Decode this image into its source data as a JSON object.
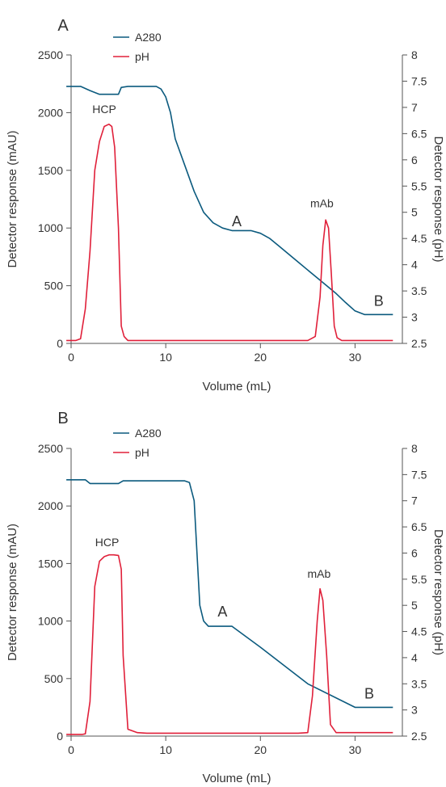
{
  "colors": {
    "a280": "#0b5a7e",
    "ph": "#e0203a"
  },
  "chart_data": [
    {
      "type": "line",
      "panel_label": "A",
      "xlabel": "Volume (mL)",
      "ylabel_left": "Detector response (mAU)",
      "ylabel_right": "Detector response (pH)",
      "xlim": [
        0,
        35
      ],
      "ylim_left": [
        0,
        2500
      ],
      "ylim_right": [
        2.5,
        8
      ],
      "x_ticks": [
        0,
        10,
        20,
        30
      ],
      "x_tick_labels": [
        "0",
        "10",
        "20",
        "30"
      ],
      "y_left_ticks": [
        0,
        500,
        1000,
        1500,
        2000,
        2500
      ],
      "y_left_tick_labels": [
        "0",
        "500",
        "1000",
        "1500",
        "2000",
        "2500"
      ],
      "y_right_ticks": [
        2.5,
        3,
        3.5,
        4,
        4.5,
        5,
        5.5,
        6,
        6.5,
        7,
        7.5,
        8
      ],
      "y_right_tick_labels": [
        "2.5",
        "3",
        "3.5",
        "4",
        "4.5",
        "5",
        "5.5",
        "6",
        "6.5",
        "7",
        "7.5",
        "8"
      ],
      "legend": [
        "A280",
        "pH"
      ],
      "series": [
        {
          "name": "A280",
          "axis": "right",
          "x": [
            -0.5,
            1,
            2,
            3,
            4,
            5,
            5.3,
            6,
            8,
            9,
            9.5,
            10,
            10.5,
            11,
            12,
            13,
            14,
            15,
            16,
            17,
            18,
            19,
            20,
            21,
            22,
            24,
            26,
            28,
            29,
            30,
            31,
            34
          ],
          "y": [
            7.4,
            7.4,
            7.32,
            7.25,
            7.25,
            7.25,
            7.38,
            7.4,
            7.4,
            7.4,
            7.35,
            7.2,
            6.9,
            6.4,
            5.9,
            5.4,
            5,
            4.8,
            4.7,
            4.65,
            4.65,
            4.65,
            4.6,
            4.5,
            4.35,
            4.05,
            3.75,
            3.45,
            3.28,
            3.12,
            3.05,
            3.05
          ]
        },
        {
          "name": "pH",
          "axis": "left",
          "x": [
            -0.5,
            0.5,
            1,
            1.5,
            2,
            2.5,
            3,
            3.5,
            4,
            4.3,
            4.6,
            5,
            5.3,
            5.6,
            6,
            7,
            10,
            20,
            25,
            25.8,
            26.3,
            26.6,
            26.9,
            27.2,
            27.5,
            27.8,
            28.1,
            28.6,
            29.5,
            34
          ],
          "y": [
            25,
            25,
            40,
            300,
            800,
            1500,
            1750,
            1880,
            1900,
            1880,
            1700,
            1000,
            150,
            60,
            25,
            25,
            25,
            25,
            25,
            60,
            400,
            850,
            1070,
            1000,
            600,
            150,
            50,
            25,
            25,
            25
          ]
        }
      ],
      "annotations": [
        {
          "text": "HCP",
          "x": 3.5,
          "y": 1995
        },
        {
          "text": "A",
          "x": 17.5,
          "y": 1015
        },
        {
          "text": "mAb",
          "x": 26.5,
          "y": 1180
        },
        {
          "text": "B",
          "x": 32.5,
          "y": 325
        }
      ]
    },
    {
      "type": "line",
      "panel_label": "B",
      "xlabel": "Volume (mL)",
      "ylabel_left": "Detector response (mAU)",
      "ylabel_right": "Detector response (pH)",
      "xlim": [
        0,
        35
      ],
      "ylim_left": [
        0,
        2500
      ],
      "ylim_right": [
        2.5,
        8
      ],
      "x_ticks": [
        0,
        10,
        20,
        30
      ],
      "x_tick_labels": [
        "0",
        "10",
        "20",
        "30"
      ],
      "y_left_ticks": [
        0,
        500,
        1000,
        1500,
        2000,
        2500
      ],
      "y_left_tick_labels": [
        "0",
        "500",
        "1000",
        "1500",
        "2000",
        "2500"
      ],
      "y_right_ticks": [
        2.5,
        3,
        3.5,
        4,
        4.5,
        5,
        5.5,
        6,
        6.5,
        7,
        7.5,
        8
      ],
      "y_right_tick_labels": [
        "2.5",
        "3",
        "3.5",
        "4",
        "4.5",
        "5",
        "5.5",
        "6",
        "6.5",
        "7",
        "7.5",
        "8"
      ],
      "legend": [
        "A280",
        "pH"
      ],
      "series": [
        {
          "name": "A280",
          "axis": "right",
          "x": [
            -0.5,
            1.5,
            2,
            5,
            5.5,
            10,
            12,
            12.5,
            13,
            13.3,
            13.6,
            14,
            14.5,
            15,
            17,
            20,
            25,
            30,
            30.5,
            34
          ],
          "y": [
            7.4,
            7.4,
            7.33,
            7.33,
            7.38,
            7.38,
            7.38,
            7.35,
            7.0,
            6.0,
            5.0,
            4.7,
            4.6,
            4.6,
            4.6,
            4.2,
            3.5,
            3.05,
            3.05,
            3.05
          ]
        },
        {
          "name": "pH",
          "axis": "left",
          "x": [
            -0.5,
            1.2,
            1.5,
            2,
            2.5,
            3,
            3.5,
            4,
            4.5,
            5,
            5.3,
            5.5,
            6,
            7,
            8,
            20,
            24,
            25,
            25.5,
            26,
            26.3,
            26.6,
            27,
            27.4,
            28,
            30,
            34
          ],
          "y": [
            15,
            15,
            20,
            300,
            1300,
            1520,
            1560,
            1575,
            1575,
            1570,
            1450,
            700,
            60,
            30,
            25,
            25,
            25,
            30,
            350,
            1000,
            1280,
            1180,
            700,
            100,
            30,
            30,
            30
          ]
        }
      ],
      "annotations": [
        {
          "text": "HCP",
          "x": 3.8,
          "y": 1650
        },
        {
          "text": "A",
          "x": 16,
          "y": 1040
        },
        {
          "text": "mAb",
          "x": 26.2,
          "y": 1375
        },
        {
          "text": "B",
          "x": 31.5,
          "y": 325
        }
      ]
    }
  ]
}
